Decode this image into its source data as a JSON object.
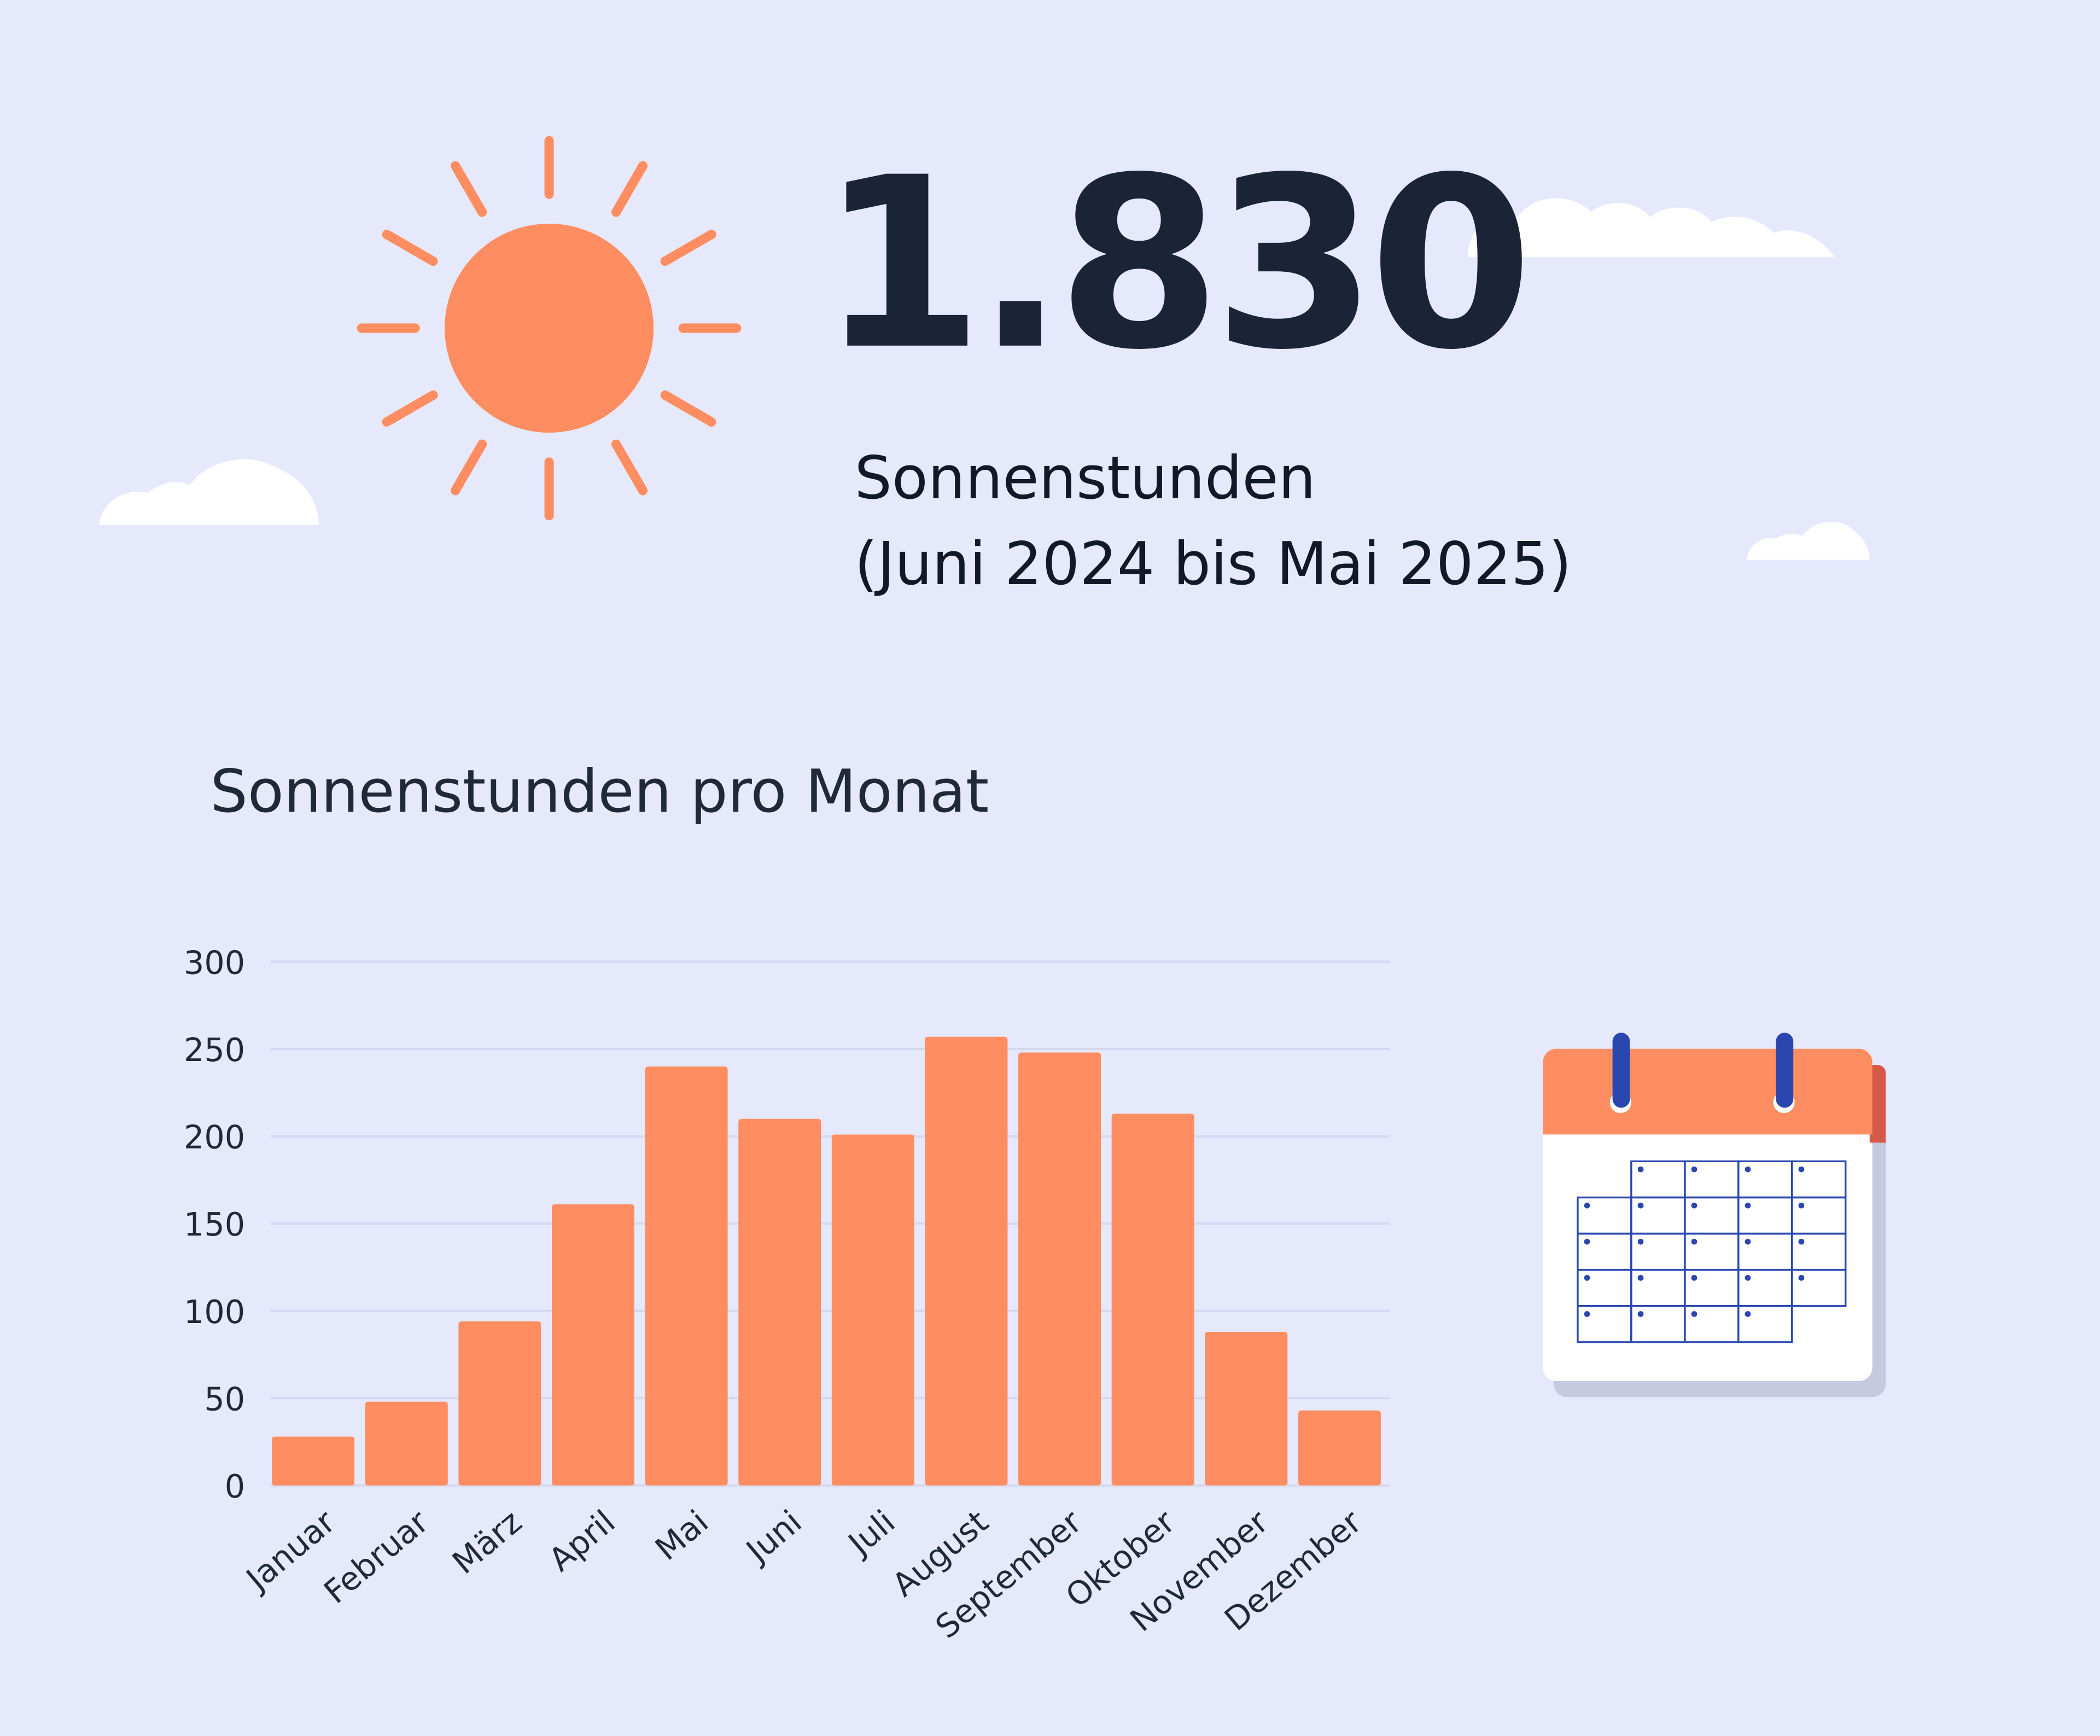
{
  "header": {
    "total_value": "1.830",
    "label_line1": "Sonnenstunden",
    "label_line2": "(Juni 2024 bis Mai 2025)"
  },
  "colors": {
    "background": "#e6e9fc",
    "accent_orange": "#fe8e62",
    "text_dark": "#1b2436",
    "gridline": "#d4d8ee",
    "calendar_blue": "#2a47b0",
    "calendar_header_shadow": "#d65a4a"
  },
  "icons": {
    "sun": "sun-icon",
    "cloud": "cloud-icon",
    "calendar": "calendar-icon"
  },
  "chart_data": {
    "type": "bar",
    "title": "Sonnenstunden pro Monat",
    "categories": [
      "Januar",
      "Februar",
      "März",
      "April",
      "Mai",
      "Juni",
      "Juli",
      "August",
      "September",
      "Oktober",
      "November",
      "Dezember"
    ],
    "values": [
      28,
      48,
      94,
      161,
      240,
      210,
      201,
      257,
      248,
      213,
      88,
      43
    ],
    "yticks": [
      0,
      50,
      100,
      150,
      200,
      250,
      300
    ],
    "ylim": [
      0,
      300
    ],
    "xlabel": "",
    "ylabel": "",
    "grid": true,
    "legend": "none",
    "bar_color": "#fe8e62"
  }
}
